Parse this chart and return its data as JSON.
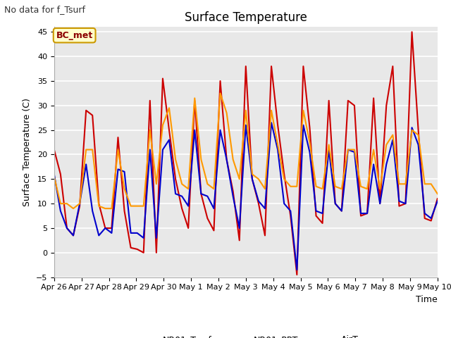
{
  "title": "Surface Temperature",
  "ylabel": "Surface Temperature (C)",
  "xlabel": "Time",
  "top_left_text": "No data for f_Tsurf",
  "annotation_box": "BC_met",
  "ylim": [
    -5,
    46
  ],
  "yticks": [
    -5,
    0,
    5,
    10,
    15,
    20,
    25,
    30,
    35,
    40,
    45
  ],
  "fig_bg_color": "#ffffff",
  "plot_bg_color": "#e8e8e8",
  "x_labels": [
    "Apr 26",
    "Apr 27",
    "Apr 28",
    "Apr 29",
    "Apr 30",
    "May 1",
    "May 2",
    "May 3",
    "May 4",
    "May 5",
    "May 6",
    "May 7",
    "May 8",
    "May 9",
    "May 10"
  ],
  "line_colors": {
    "NR01_Tsurf": "#cc0000",
    "NR01_PRT": "#0000cc",
    "AirT": "#ff9900"
  },
  "NR01_Tsurf": [
    21.0,
    16.0,
    5.0,
    3.5,
    9.5,
    29.0,
    28.0,
    10.0,
    5.0,
    5.0,
    23.5,
    8.5,
    1.0,
    0.7,
    0.0,
    31.0,
    0.0,
    35.5,
    25.0,
    15.0,
    9.0,
    5.0,
    31.0,
    12.0,
    7.0,
    4.5,
    35.0,
    19.0,
    12.5,
    2.5,
    38.0,
    15.0,
    10.0,
    3.5,
    38.0,
    26.0,
    16.0,
    7.5,
    -4.5,
    38.0,
    25.5,
    7.5,
    6.0,
    31.0,
    10.0,
    8.5,
    31.0,
    30.0,
    7.5,
    8.0,
    31.5,
    10.0,
    30.0,
    38.0,
    9.5,
    10.0,
    45.0,
    25.0,
    7.0,
    6.5,
    11.0
  ],
  "NR01_PRT": [
    16.0,
    8.5,
    5.0,
    3.5,
    10.0,
    18.0,
    8.5,
    3.5,
    5.0,
    4.0,
    17.0,
    16.5,
    4.0,
    4.0,
    3.0,
    21.0,
    3.0,
    21.0,
    23.0,
    12.0,
    11.5,
    9.5,
    25.0,
    12.0,
    11.5,
    9.0,
    25.0,
    19.0,
    11.5,
    5.0,
    26.0,
    15.0,
    10.5,
    9.0,
    26.5,
    21.0,
    10.0,
    8.5,
    -3.5,
    26.0,
    20.5,
    8.5,
    8.0,
    21.0,
    10.0,
    8.5,
    21.0,
    20.5,
    8.0,
    8.0,
    18.0,
    10.0,
    18.0,
    23.0,
    10.5,
    10.0,
    25.5,
    22.0,
    8.0,
    7.0,
    10.5
  ],
  "AirT": [
    15.5,
    10.0,
    10.0,
    9.0,
    10.0,
    21.0,
    21.0,
    9.5,
    9.0,
    9.0,
    21.0,
    13.0,
    9.5,
    9.5,
    9.5,
    25.0,
    14.0,
    26.0,
    29.5,
    19.0,
    14.0,
    13.0,
    31.5,
    19.0,
    14.0,
    13.0,
    32.5,
    28.5,
    19.0,
    15.0,
    29.0,
    16.0,
    15.0,
    13.0,
    29.0,
    22.0,
    15.0,
    13.5,
    13.5,
    29.0,
    22.5,
    13.5,
    13.0,
    22.0,
    13.5,
    13.0,
    21.0,
    21.0,
    13.5,
    13.0,
    21.0,
    13.0,
    22.0,
    24.0,
    14.0,
    14.0,
    25.0,
    24.0,
    14.0,
    14.0,
    12.0
  ]
}
